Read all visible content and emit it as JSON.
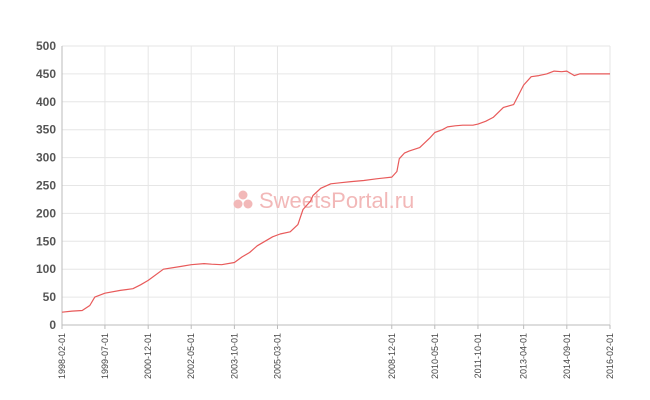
{
  "watermark": {
    "text": "SweetsPortal.ru",
    "icon": "candy-dots-icon",
    "color": "#f2b8b8"
  },
  "chart_data": {
    "type": "line",
    "title": "",
    "xlabel": "",
    "ylabel": "",
    "ylim": [
      0,
      500
    ],
    "yticks": [
      "0",
      "50",
      "100",
      "150",
      "200",
      "250",
      "300",
      "350",
      "400",
      "450",
      "500"
    ],
    "xticks": [
      "1998-02-01",
      "1999-07-01",
      "2000-12-01",
      "2002-05-01",
      "2003-10-01",
      "2005-03-01",
      "2008-12-01",
      "2010-05-01",
      "2011-10-01",
      "2013-04-01",
      "2014-09-01",
      "2016-02-01"
    ],
    "grid": true,
    "line_color": "#e85a5a",
    "series": [
      {
        "x": [
          "1998-02-01",
          "1998-06-01",
          "1998-10-01",
          "1999-01-01",
          "1999-03-01",
          "1999-07-01",
          "2000-01-01",
          "2000-06-01",
          "2000-09-01",
          "2000-12-01",
          "2001-06-01",
          "2002-01-01",
          "2002-05-01",
          "2002-10-01",
          "2003-01-01",
          "2003-05-01",
          "2003-10-01",
          "2004-01-01",
          "2004-04-01",
          "2004-07-01",
          "2004-10-01",
          "2005-01-01",
          "2005-04-01",
          "2005-08-01",
          "2005-11-01",
          "2006-01-01",
          "2006-04-01",
          "2006-05-01",
          "2006-08-01",
          "2006-12-01",
          "2007-04-01",
          "2007-08-01",
          "2008-01-01",
          "2008-06-01",
          "2008-12-01",
          "2009-02-01",
          "2009-03-01",
          "2009-05-01",
          "2009-07-01",
          "2009-11-01",
          "2010-03-01",
          "2010-05-01",
          "2010-08-01",
          "2010-10-01",
          "2011-01-01",
          "2011-04-01",
          "2011-08-01",
          "2011-10-01",
          "2012-01-01",
          "2012-04-01",
          "2012-08-01",
          "2012-12-01",
          "2013-04-01",
          "2013-07-01",
          "2013-10-01",
          "2014-01-01",
          "2014-04-01",
          "2014-07-01",
          "2014-09-01",
          "2014-12-01",
          "2015-02-01",
          "2015-03-01",
          "2015-06-01",
          "2015-09-01",
          "2015-12-01",
          "2016-01-01",
          "2016-02-01"
        ],
        "y": [
          23,
          25,
          26,
          35,
          50,
          57,
          62,
          65,
          72,
          80,
          100,
          105,
          108,
          110,
          109,
          108,
          112,
          122,
          130,
          142,
          150,
          158,
          163,
          167,
          180,
          207,
          222,
          232,
          245,
          253,
          255,
          257,
          259,
          262,
          265,
          275,
          298,
          308,
          312,
          318,
          335,
          345,
          350,
          355,
          357,
          358,
          358,
          360,
          365,
          372,
          390,
          395,
          430,
          445,
          447,
          450,
          455,
          454,
          455,
          447,
          450,
          450,
          450,
          450,
          450,
          450,
          450
        ]
      }
    ]
  }
}
